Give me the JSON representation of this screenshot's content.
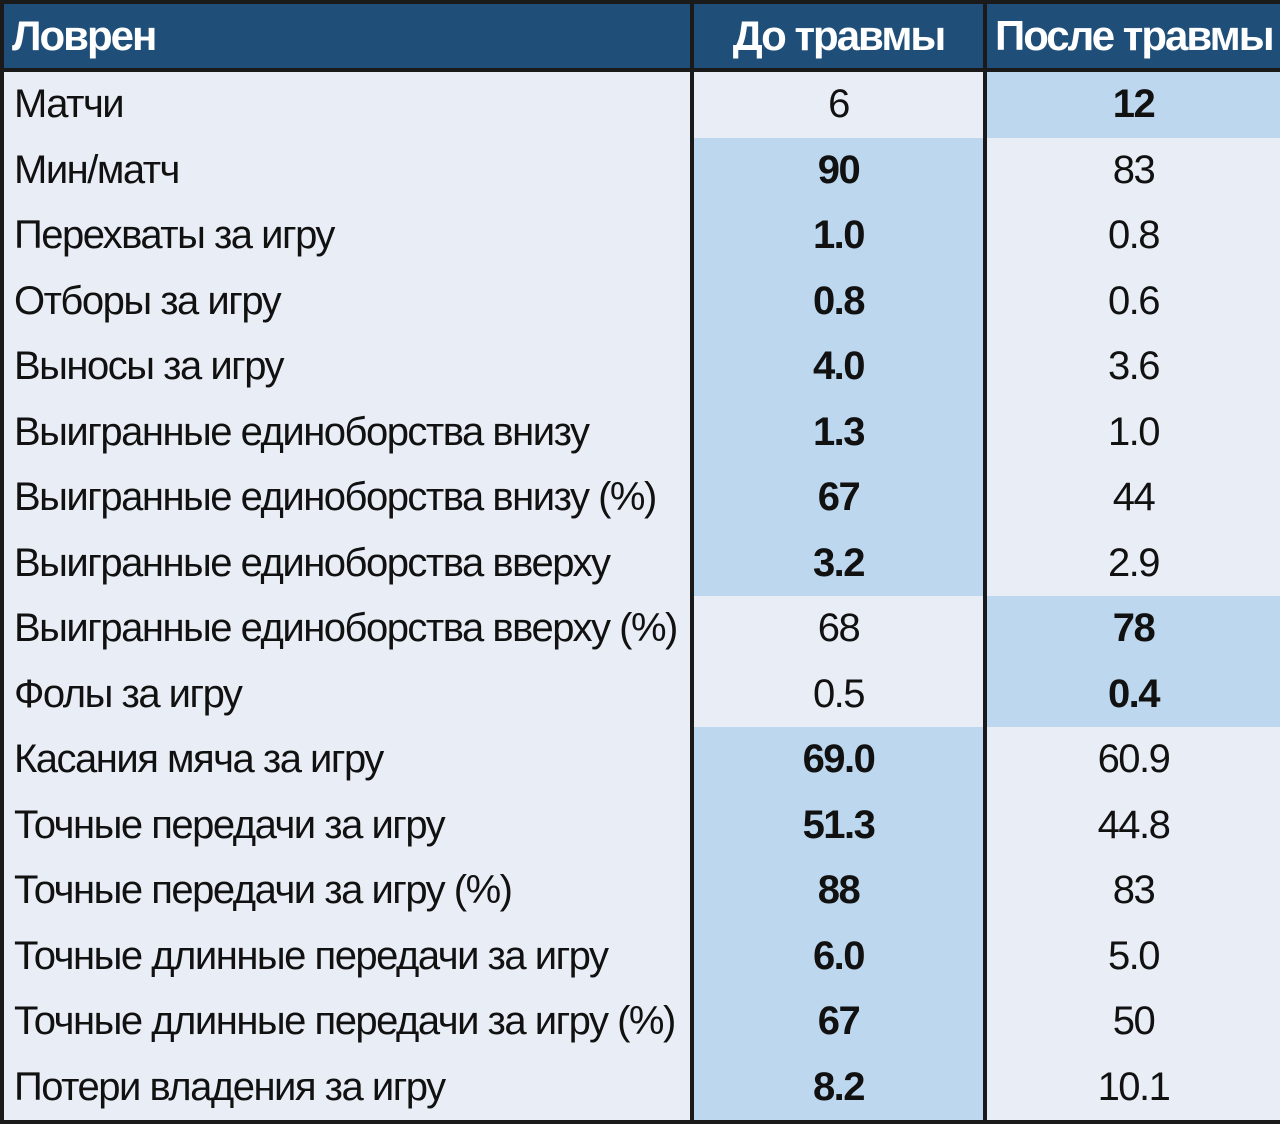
{
  "chart_data": {
    "type": "table",
    "columns": [
      "Ловрен",
      "До травмы",
      "После травмы"
    ],
    "rows": [
      {
        "label": "Матчи",
        "before": "6",
        "after": "12",
        "highlight": "after"
      },
      {
        "label": "Мин/матч",
        "before": "90",
        "after": "83",
        "highlight": "before"
      },
      {
        "label": "Перехваты за игру",
        "before": "1.0",
        "after": "0.8",
        "highlight": "before"
      },
      {
        "label": "Отборы за игру",
        "before": "0.8",
        "after": "0.6",
        "highlight": "before"
      },
      {
        "label": "Выносы за игру",
        "before": "4.0",
        "after": "3.6",
        "highlight": "before"
      },
      {
        "label": "Выигранные единоборства внизу",
        "before": "1.3",
        "after": "1.0",
        "highlight": "before"
      },
      {
        "label": "Выигранные единоборства внизу (%)",
        "before": "67",
        "after": "44",
        "highlight": "before"
      },
      {
        "label": "Выигранные единоборства вверху",
        "before": "3.2",
        "after": "2.9",
        "highlight": "before"
      },
      {
        "label": "Выигранные единоборства вверху (%)",
        "before": "68",
        "after": "78",
        "highlight": "after"
      },
      {
        "label": "Фолы за игру",
        "before": "0.5",
        "after": "0.4",
        "highlight": "after"
      },
      {
        "label": "Касания мяча за игру",
        "before": "69.0",
        "after": "60.9",
        "highlight": "before"
      },
      {
        "label": "Точные передачи за игру",
        "before": "51.3",
        "after": "44.8",
        "highlight": "before"
      },
      {
        "label": "Точные передачи за игру (%)",
        "before": "88",
        "after": "83",
        "highlight": "before"
      },
      {
        "label": "Точные длинные передачи за игру",
        "before": "6.0",
        "after": "5.0",
        "highlight": "before"
      },
      {
        "label": "Точные длинные передачи за игру (%)",
        "before": "67",
        "after": "50",
        "highlight": "before"
      },
      {
        "label": "Потери владения за игру",
        "before": "8.2",
        "after": "10.1",
        "highlight": "before"
      }
    ]
  },
  "colors": {
    "header_bg": "#1f4e79",
    "header_text": "#ffffff",
    "highlight_bg": "#bdd7ee",
    "cell_bg": "#e9eef6",
    "border": "#1a1a1a"
  }
}
